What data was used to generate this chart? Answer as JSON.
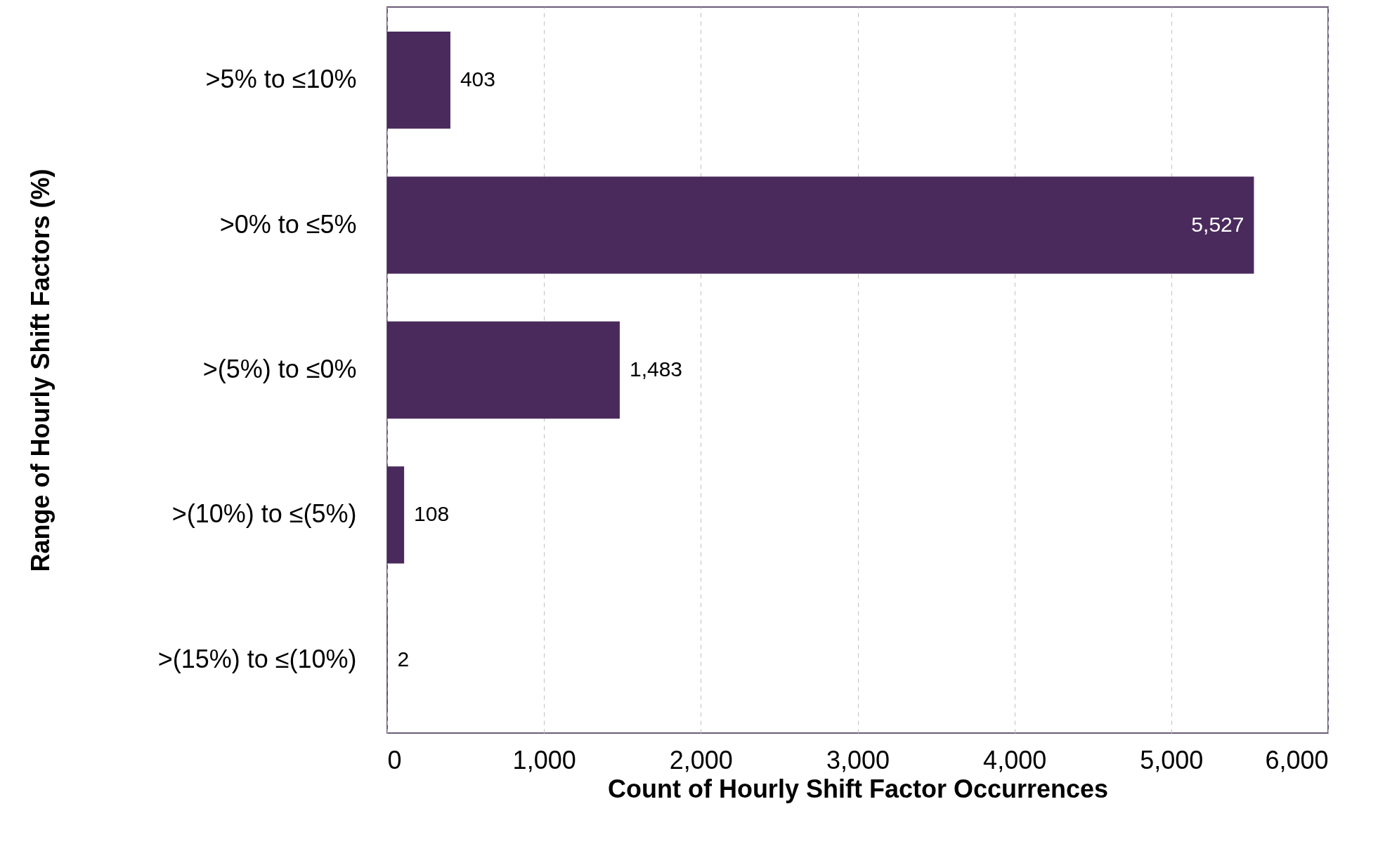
{
  "chart_data": {
    "type": "bar",
    "orientation": "horizontal",
    "xlabel": "Count of Hourly Shift Factor Occurrences",
    "ylabel": "Range of Hourly Shift Factors (%)",
    "categories": [
      ">5% to ≤10%",
      ">0% to ≤5%",
      ">(5%) to ≤0%",
      ">(10%) to ≤(5%)",
      ">(15%) to ≤(10%)"
    ],
    "values": [
      403,
      5527,
      1483,
      108,
      2
    ],
    "value_labels": [
      "403",
      "5,527",
      "1,483",
      "108",
      "2"
    ],
    "color": "#4a2a5c",
    "xlim": [
      0,
      6000
    ],
    "xticks": [
      0,
      {
        "value": 1000,
        "label": "1,000"
      },
      {
        "value": 2000,
        "label": "2,000"
      },
      {
        "value": 3000,
        "label": "3,000"
      },
      {
        "value": 4000,
        "label": "4,000"
      },
      {
        "value": 5000,
        "label": "5,000"
      },
      {
        "value": 6000,
        "label": "6,000"
      }
    ],
    "grid": "x"
  }
}
